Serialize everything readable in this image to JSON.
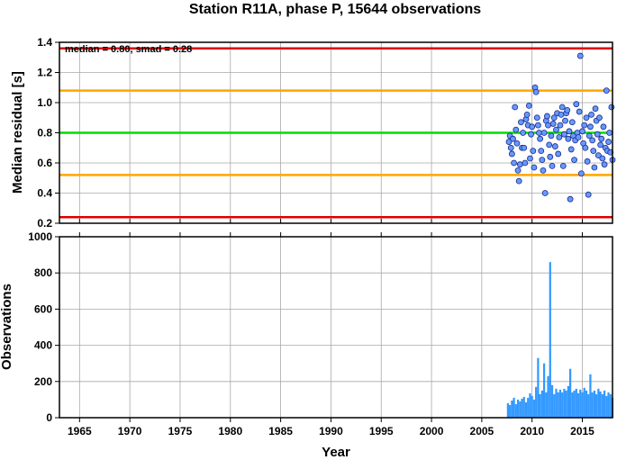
{
  "chart_data": [
    {
      "type": "scatter",
      "title": "Station R11A, phase P, 15644 observations",
      "ylabel": "Median residual [s]",
      "annotation": "median = 0.80, smad = 0.28",
      "xlim": [
        1963,
        2018
      ],
      "ylim": [
        0.2,
        1.4
      ],
      "yticks": [
        "0.2",
        "0.4",
        "0.6",
        "0.8",
        "1.0",
        "1.2",
        "1.4"
      ],
      "grid": true,
      "reference_lines": [
        {
          "y": 0.8,
          "color": "#00dd00"
        },
        {
          "y": 1.08,
          "color": "#ffa500"
        },
        {
          "y": 0.52,
          "color": "#ffa500"
        },
        {
          "y": 1.36,
          "color": "#dd0000"
        },
        {
          "y": 0.24,
          "color": "#dd0000"
        }
      ],
      "series": [
        {
          "color": "#6699ff",
          "points": [
            [
              2007.7,
              0.74
            ],
            [
              2007.8,
              0.78
            ],
            [
              2007.9,
              0.7
            ],
            [
              2008.0,
              0.66
            ],
            [
              2008.1,
              0.76
            ],
            [
              2008.2,
              0.6
            ],
            [
              2008.3,
              0.97
            ],
            [
              2008.4,
              0.82
            ],
            [
              2008.5,
              0.73
            ],
            [
              2008.6,
              0.55
            ],
            [
              2008.7,
              0.48
            ],
            [
              2008.8,
              0.59
            ],
            [
              2008.9,
              0.87
            ],
            [
              2009.0,
              0.7
            ],
            [
              2009.1,
              0.8
            ],
            [
              2009.2,
              0.7
            ],
            [
              2009.3,
              0.6
            ],
            [
              2009.4,
              0.89
            ],
            [
              2009.5,
              0.92
            ],
            [
              2009.6,
              0.85
            ],
            [
              2009.7,
              0.98
            ],
            [
              2009.8,
              0.63
            ],
            [
              2009.9,
              0.79
            ],
            [
              2010.0,
              0.84
            ],
            [
              2010.1,
              0.68
            ],
            [
              2010.2,
              0.57
            ],
            [
              2010.3,
              1.1
            ],
            [
              2010.4,
              1.07
            ],
            [
              2010.5,
              0.9
            ],
            [
              2010.6,
              0.85
            ],
            [
              2010.7,
              0.8
            ],
            [
              2010.8,
              0.76
            ],
            [
              2010.9,
              0.68
            ],
            [
              2011.0,
              0.62
            ],
            [
              2011.1,
              0.55
            ],
            [
              2011.2,
              0.8
            ],
            [
              2011.3,
              0.4
            ],
            [
              2011.4,
              0.88
            ],
            [
              2011.5,
              0.91
            ],
            [
              2011.6,
              0.85
            ],
            [
              2011.7,
              0.72
            ],
            [
              2011.8,
              0.64
            ],
            [
              2011.9,
              0.78
            ],
            [
              2012.0,
              0.58
            ],
            [
              2012.1,
              0.86
            ],
            [
              2012.2,
              0.9
            ],
            [
              2012.3,
              0.71
            ],
            [
              2012.4,
              0.82
            ],
            [
              2012.5,
              0.93
            ],
            [
              2012.6,
              0.66
            ],
            [
              2012.7,
              0.77
            ],
            [
              2012.8,
              0.85
            ],
            [
              2012.9,
              0.92
            ],
            [
              2013.0,
              0.97
            ],
            [
              2013.1,
              0.58
            ],
            [
              2013.2,
              0.79
            ],
            [
              2013.3,
              0.88
            ],
            [
              2013.4,
              0.93
            ],
            [
              2013.5,
              0.95
            ],
            [
              2013.6,
              0.76
            ],
            [
              2013.7,
              0.81
            ],
            [
              2013.8,
              0.36
            ],
            [
              2013.9,
              0.69
            ],
            [
              2014.0,
              0.87
            ],
            [
              2014.1,
              0.78
            ],
            [
              2014.2,
              0.62
            ],
            [
              2014.3,
              0.75
            ],
            [
              2014.4,
              0.99
            ],
            [
              2014.5,
              0.8
            ],
            [
              2014.6,
              0.77
            ],
            [
              2014.7,
              0.94
            ],
            [
              2014.8,
              1.31
            ],
            [
              2014.9,
              0.53
            ],
            [
              2015.0,
              0.81
            ],
            [
              2015.1,
              0.73
            ],
            [
              2015.2,
              0.85
            ],
            [
              2015.3,
              0.7
            ],
            [
              2015.4,
              0.9
            ],
            [
              2015.5,
              0.61
            ],
            [
              2015.6,
              0.39
            ],
            [
              2015.7,
              0.78
            ],
            [
              2015.8,
              0.84
            ],
            [
              2015.9,
              0.92
            ],
            [
              2016.0,
              0.75
            ],
            [
              2016.1,
              0.68
            ],
            [
              2016.2,
              0.57
            ],
            [
              2016.3,
              0.96
            ],
            [
              2016.4,
              0.88
            ],
            [
              2016.5,
              0.79
            ],
            [
              2016.6,
              0.65
            ],
            [
              2016.7,
              0.9
            ],
            [
              2016.8,
              0.72
            ],
            [
              2016.9,
              0.76
            ],
            [
              2017.0,
              0.63
            ],
            [
              2017.1,
              0.84
            ],
            [
              2017.2,
              0.59
            ],
            [
              2017.3,
              0.7
            ],
            [
              2017.4,
              1.08
            ],
            [
              2017.5,
              0.68
            ],
            [
              2017.6,
              0.74
            ],
            [
              2017.7,
              0.8
            ],
            [
              2017.8,
              0.67
            ],
            [
              2017.9,
              0.97
            ],
            [
              2018.0,
              0.62
            ]
          ]
        }
      ]
    },
    {
      "type": "bar",
      "xlabel": "Year",
      "ylabel": "Observations",
      "xlim": [
        1963,
        2018
      ],
      "ylim": [
        0,
        1000
      ],
      "xticks": [
        "1965",
        "1970",
        "1975",
        "1980",
        "1985",
        "1990",
        "1995",
        "2000",
        "2005",
        "2010",
        "2015"
      ],
      "yticks": [
        "0",
        "200",
        "400",
        "600",
        "800",
        "1000"
      ],
      "grid": true,
      "bar_color": "#3399ff",
      "series": [
        {
          "points": [
            [
              2007.6,
              80
            ],
            [
              2007.8,
              70
            ],
            [
              2008.0,
              95
            ],
            [
              2008.2,
              110
            ],
            [
              2008.4,
              75
            ],
            [
              2008.6,
              100
            ],
            [
              2008.8,
              90
            ],
            [
              2009.0,
              105
            ],
            [
              2009.2,
              115
            ],
            [
              2009.4,
              85
            ],
            [
              2009.6,
              110
            ],
            [
              2009.8,
              135
            ],
            [
              2010.0,
              120
            ],
            [
              2010.2,
              100
            ],
            [
              2010.4,
              170
            ],
            [
              2010.6,
              330
            ],
            [
              2010.8,
              130
            ],
            [
              2011.0,
              150
            ],
            [
              2011.2,
              300
            ],
            [
              2011.4,
              140
            ],
            [
              2011.6,
              230
            ],
            [
              2011.8,
              860
            ],
            [
              2012.0,
              180
            ],
            [
              2012.2,
              130
            ],
            [
              2012.4,
              160
            ],
            [
              2012.6,
              140
            ],
            [
              2012.8,
              155
            ],
            [
              2013.0,
              140
            ],
            [
              2013.2,
              160
            ],
            [
              2013.4,
              150
            ],
            [
              2013.6,
              175
            ],
            [
              2013.8,
              270
            ],
            [
              2014.0,
              140
            ],
            [
              2014.2,
              150
            ],
            [
              2014.4,
              160
            ],
            [
              2014.6,
              135
            ],
            [
              2014.8,
              155
            ],
            [
              2015.0,
              140
            ],
            [
              2015.2,
              165
            ],
            [
              2015.4,
              150
            ],
            [
              2015.6,
              130
            ],
            [
              2015.8,
              240
            ],
            [
              2016.0,
              140
            ],
            [
              2016.2,
              150
            ],
            [
              2016.4,
              130
            ],
            [
              2016.6,
              160
            ],
            [
              2016.8,
              145
            ],
            [
              2017.0,
              130
            ],
            [
              2017.2,
              150
            ],
            [
              2017.4,
              120
            ],
            [
              2017.6,
              140
            ],
            [
              2017.8,
              130
            ],
            [
              2018.0,
              110
            ]
          ]
        }
      ]
    }
  ]
}
